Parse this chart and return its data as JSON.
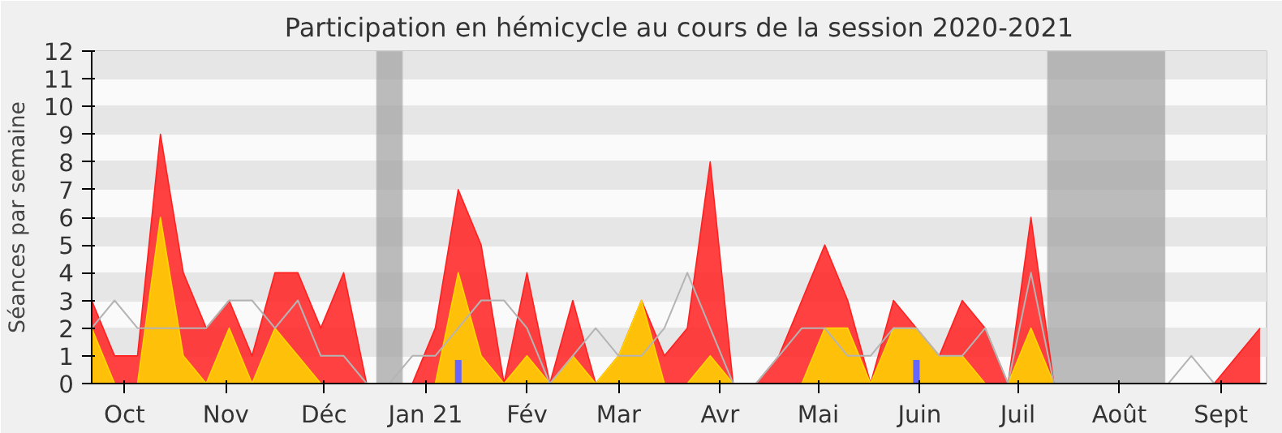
{
  "chart_data": {
    "type": "area",
    "title": "Participation en hémicycle au cours de la session 2020-2021",
    "ylabel": "Séances par semaine",
    "x": [
      "2020-09-21",
      "2020-09-28",
      "2020-10-05",
      "2020-10-12",
      "2020-10-19",
      "2020-10-26",
      "2020-11-02",
      "2020-11-09",
      "2020-11-16",
      "2020-11-23",
      "2020-11-30",
      "2020-12-07",
      "2020-12-14",
      "2020-12-21",
      "2020-12-28",
      "2021-01-04",
      "2021-01-11",
      "2021-01-18",
      "2021-01-25",
      "2021-02-01",
      "2021-02-08",
      "2021-02-15",
      "2021-02-22",
      "2021-03-01",
      "2021-03-08",
      "2021-03-15",
      "2021-03-22",
      "2021-03-29",
      "2021-04-05",
      "2021-04-12",
      "2021-04-19",
      "2021-04-26",
      "2021-05-03",
      "2021-05-10",
      "2021-05-17",
      "2021-05-24",
      "2021-05-31",
      "2021-06-07",
      "2021-06-14",
      "2021-06-21",
      "2021-06-28",
      "2021-07-05",
      "2021-07-12",
      "2021-07-19",
      "2021-07-26",
      "2021-08-02",
      "2021-08-09",
      "2021-08-16",
      "2021-08-23",
      "2021-08-30",
      "2021-09-06",
      "2021-09-13"
    ],
    "series": [
      {
        "color": "#ff2020",
        "values": [
          3,
          1,
          1,
          9,
          4,
          2,
          3,
          1,
          4,
          4,
          2,
          4,
          0,
          0,
          0,
          2,
          7,
          5,
          0,
          4,
          0,
          3,
          0,
          1,
          3,
          1,
          2,
          8,
          0,
          0,
          1,
          3,
          5,
          3,
          0,
          3,
          2,
          1,
          3,
          2,
          0,
          6,
          0,
          0,
          0,
          0,
          0,
          0,
          0,
          0,
          1,
          2
        ]
      },
      {
        "type": "area",
        "color": "#ffd700",
        "values": [
          2,
          0,
          0,
          6,
          1,
          0,
          2,
          0,
          2,
          1,
          0,
          0,
          0,
          0,
          0,
          0,
          4,
          1,
          0,
          1,
          0,
          1,
          0,
          1,
          3,
          0,
          0,
          1,
          0,
          0,
          0,
          0,
          2,
          2,
          0,
          2,
          2,
          1,
          1,
          0,
          0,
          2,
          0,
          0,
          0,
          0,
          0,
          0,
          0,
          0,
          0,
          0
        ]
      },
      {
        "type": "line",
        "color": "#b4b4b4",
        "values": [
          2,
          3,
          2,
          2,
          2,
          2,
          3,
          3,
          2,
          3,
          1,
          1,
          0,
          0,
          1,
          1,
          2,
          3,
          3,
          2,
          0,
          1,
          2,
          1,
          1,
          2,
          4,
          2,
          0,
          0,
          1,
          2,
          2,
          1,
          1,
          2,
          2,
          1,
          1,
          2,
          0,
          4,
          0,
          0,
          0,
          0,
          0,
          0,
          1,
          0,
          0,
          0
        ]
      },
      {
        "type": "bar",
        "color": "#6666ff",
        "values": [
          0,
          0,
          0,
          0,
          0,
          0,
          0,
          0,
          0,
          0,
          0,
          0,
          0,
          0,
          0,
          0,
          0.85,
          0,
          0,
          0,
          0,
          0,
          0,
          0,
          0,
          0,
          0,
          0,
          0,
          0,
          0,
          0,
          0,
          0,
          0,
          0,
          0.85,
          0,
          0,
          0,
          0,
          0,
          0,
          0,
          0,
          0,
          0,
          0,
          0,
          0,
          0,
          0
        ]
      }
    ],
    "xlim": [
      "2020-09-21",
      "2021-09-15"
    ],
    "ylim": [
      0,
      12
    ],
    "yticks": [
      0,
      1,
      2,
      3,
      4,
      5,
      6,
      7,
      8,
      9,
      10,
      11,
      12
    ],
    "xticks": [
      {
        "value": "2020-10-01",
        "label": "Oct"
      },
      {
        "value": "2020-11-01",
        "label": "Nov"
      },
      {
        "value": "2020-12-01",
        "label": "Déc"
      },
      {
        "value": "2021-01-01",
        "label": "Jan 21"
      },
      {
        "value": "2021-02-01",
        "label": "Fév"
      },
      {
        "value": "2021-03-01",
        "label": "Mar"
      },
      {
        "value": "2021-04-01",
        "label": "Avr"
      },
      {
        "value": "2021-05-01",
        "label": "Mai"
      },
      {
        "value": "2021-06-01",
        "label": "Juin"
      },
      {
        "value": "2021-07-01",
        "label": "Juil"
      },
      {
        "value": "2021-08-01",
        "label": "Août"
      },
      {
        "value": "2021-09-01",
        "label": "Sept"
      }
    ],
    "bands": [
      {
        "axis": "x",
        "from": "2020-12-17",
        "to": "2020-12-25",
        "color": "#a0a0a0"
      },
      {
        "axis": "x",
        "from": "2021-07-10",
        "to": "2021-08-15",
        "color": "#a0a0a0"
      }
    ],
    "grid": "y"
  }
}
